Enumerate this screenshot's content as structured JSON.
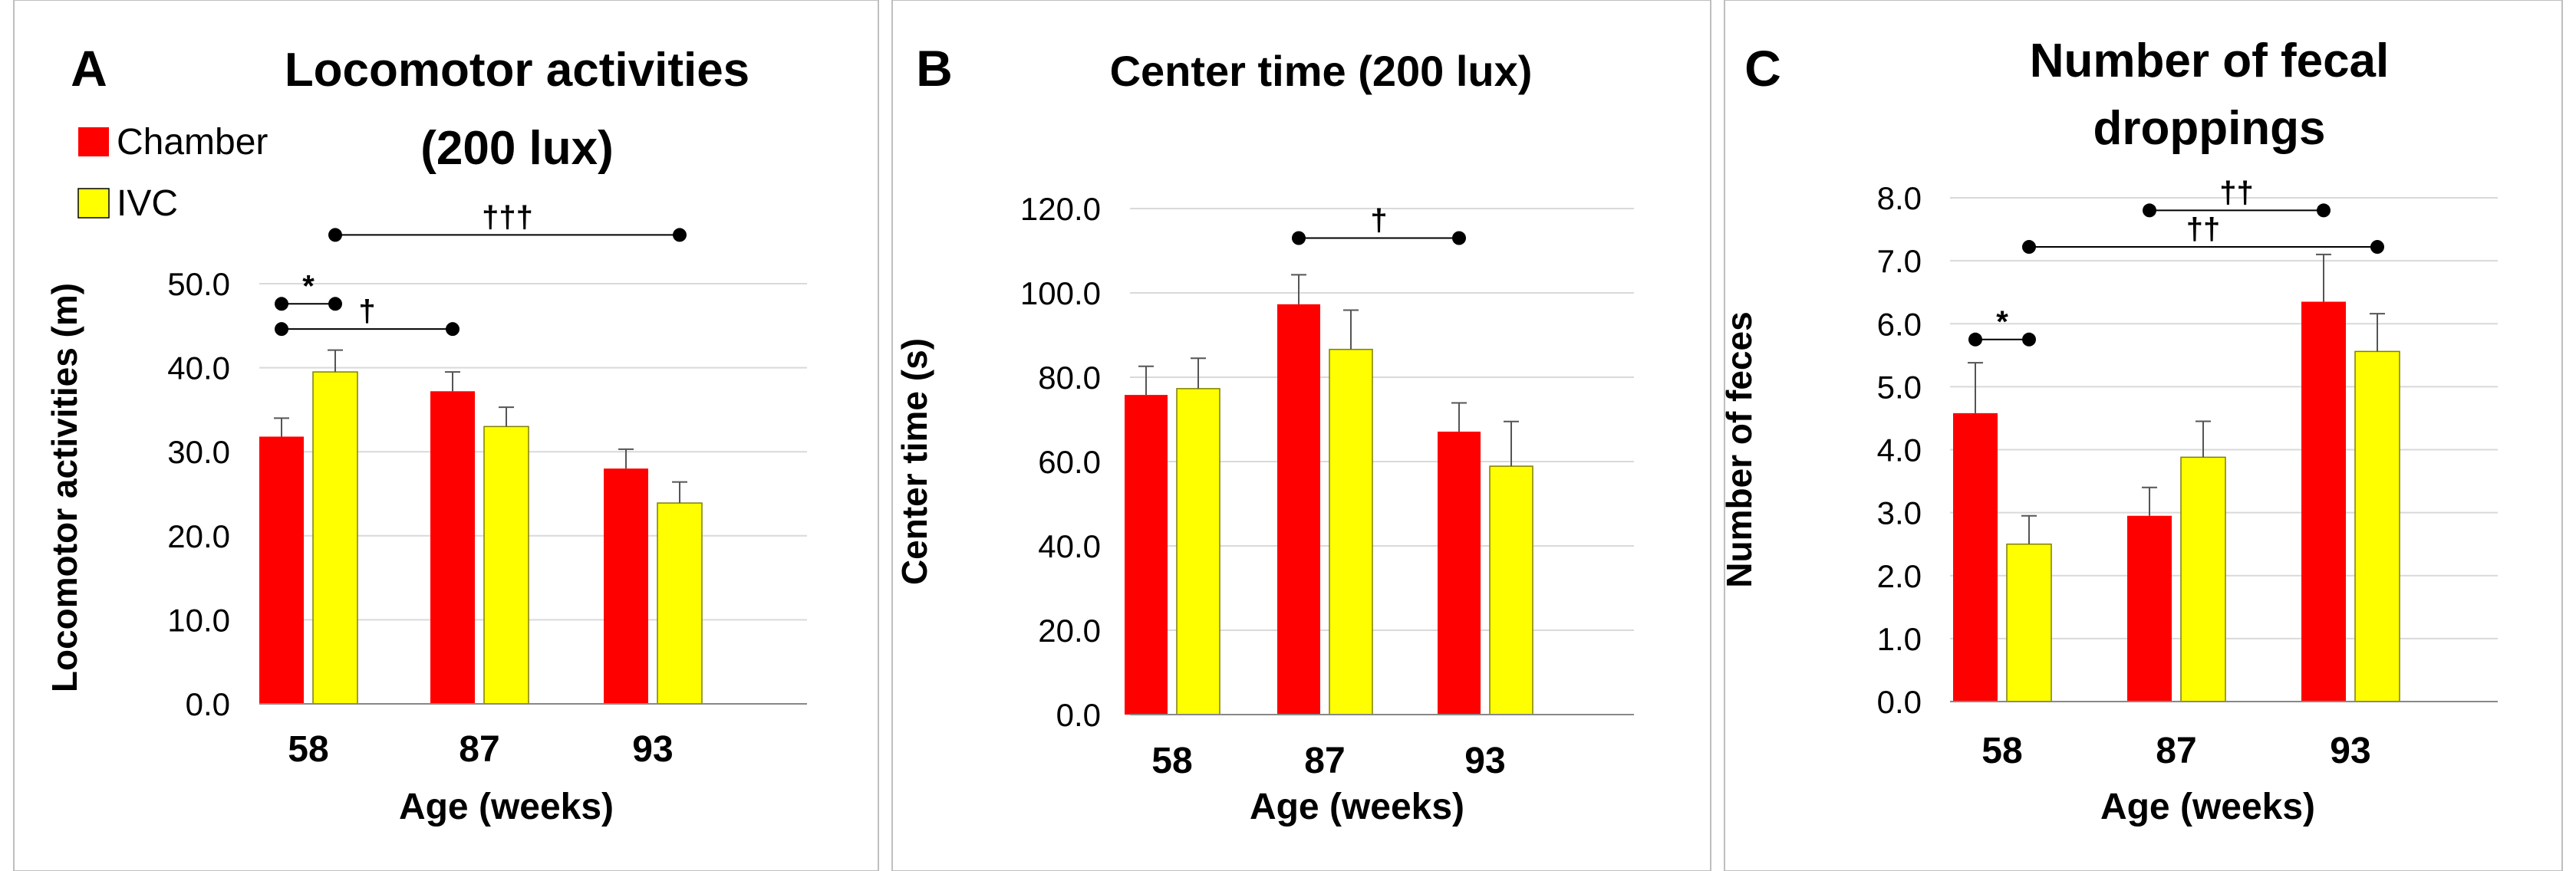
{
  "colors": {
    "chamber": "#ff0000",
    "ivc": "#ffff00",
    "axis": "#000000",
    "grid": "#d9d9d9",
    "sig_line": "#000000",
    "panel_border": "#bfbfbf"
  },
  "legend": {
    "chamber": "Chamber",
    "ivc": "IVC"
  },
  "chart_data": [
    {
      "type": "bar",
      "panel_letter": "A",
      "title_lines": [
        "Locomotor activities",
        "(200 lux)"
      ],
      "xlabel": "Age (weeks)",
      "ylabel": "Locomotor activities (m)",
      "categories": [
        "58",
        "87",
        "93"
      ],
      "series": [
        {
          "name": "Chamber",
          "values": [
            31.8,
            37.2,
            28.0
          ],
          "errors": [
            2.2,
            2.3,
            2.3
          ]
        },
        {
          "name": "IVC",
          "values": [
            39.5,
            33.0,
            23.9
          ],
          "errors": [
            2.6,
            2.3,
            2.5
          ]
        }
      ],
      "ylim": [
        0,
        50
      ],
      "yticks": [
        "0.0",
        "10.0",
        "20.0",
        "30.0",
        "40.0",
        "50.0"
      ],
      "grid": true,
      "legend_position": "top-left",
      "annotations": [
        {
          "from": "58:Chamber",
          "to": "58:IVC",
          "y": 47.6,
          "label": "*"
        },
        {
          "from": "58:Chamber",
          "to": "87:Chamber",
          "y": 44.6,
          "label": "†"
        },
        {
          "from": "58:IVC",
          "to": "93:IVC",
          "y": 55.8,
          "label": "†††"
        }
      ]
    },
    {
      "type": "bar",
      "panel_letter": "B",
      "title_lines": [
        "Center time (200 lux)"
      ],
      "xlabel": "Age (weeks)",
      "ylabel": "Center time (s)",
      "categories": [
        "58",
        "87",
        "93"
      ],
      "series": [
        {
          "name": "Chamber",
          "values": [
            75.8,
            97.3,
            67.1
          ],
          "errors": [
            6.8,
            7.0,
            6.8
          ]
        },
        {
          "name": "IVC",
          "values": [
            77.3,
            86.6,
            58.9
          ],
          "errors": [
            7.2,
            9.3,
            10.6
          ]
        }
      ],
      "ylim": [
        0,
        120
      ],
      "yticks": [
        "0.0",
        "20.0",
        "40.0",
        "60.0",
        "80.0",
        "100.0",
        "120.0"
      ],
      "grid": true,
      "annotations": [
        {
          "from": "87:Chamber",
          "to": "93:Chamber",
          "y": 113.0,
          "label": "†"
        }
      ]
    },
    {
      "type": "bar",
      "panel_letter": "C",
      "title_lines": [
        "Number of fecal",
        "droppings"
      ],
      "xlabel": "Age (weeks)",
      "ylabel": "Number of feces",
      "categories": [
        "58",
        "87",
        "93"
      ],
      "series": [
        {
          "name": "Chamber",
          "values": [
            4.58,
            2.95,
            6.35
          ],
          "errors": [
            0.8,
            0.45,
            0.75
          ]
        },
        {
          "name": "IVC",
          "values": [
            2.5,
            3.88,
            5.56
          ],
          "errors": [
            0.45,
            0.57,
            0.6
          ]
        }
      ],
      "ylim": [
        0,
        8
      ],
      "yticks": [
        "0.0",
        "1.0",
        "2.0",
        "3.0",
        "4.0",
        "5.0",
        "6.0",
        "7.0",
        "8.0"
      ],
      "grid": true,
      "annotations": [
        {
          "from": "58:Chamber",
          "to": "58:IVC",
          "y": 5.75,
          "label": "*"
        },
        {
          "from": "87:Chamber",
          "to": "93:Chamber",
          "y": 7.8,
          "label": "††"
        },
        {
          "from": "58:IVC",
          "to": "93:IVC",
          "y": 7.22,
          "label": "††"
        }
      ]
    }
  ]
}
